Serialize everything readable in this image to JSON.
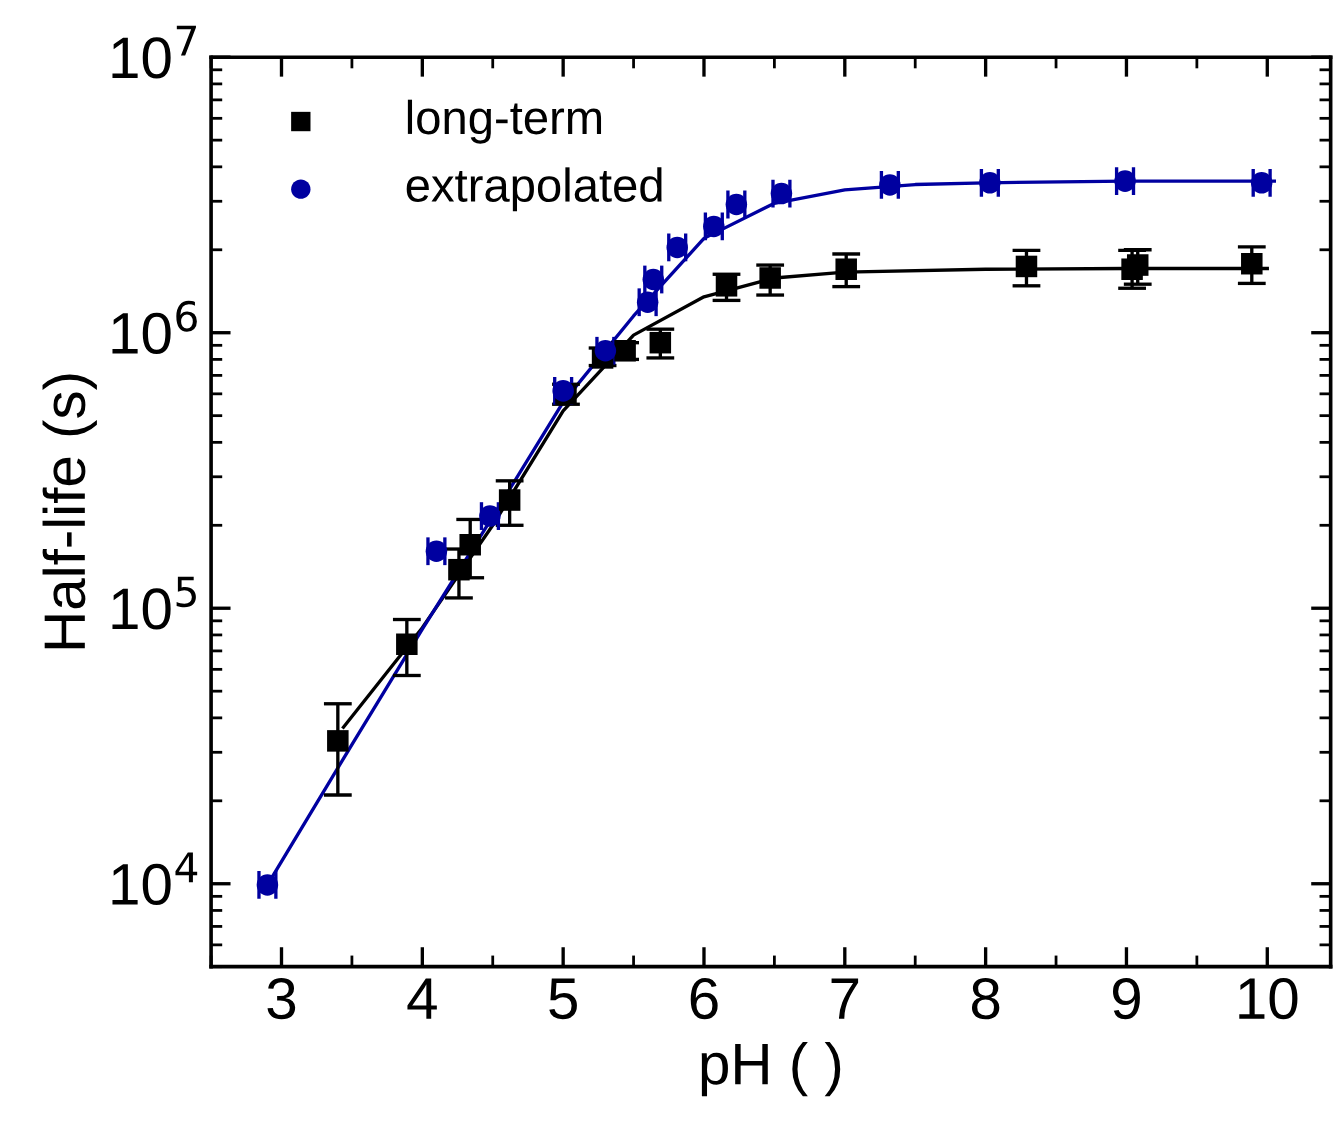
{
  "chart_data": {
    "type": "scatter",
    "xlabel": "pH ( )",
    "ylabel": "Half-life (s)",
    "log": "y",
    "xlim": [
      2.5,
      10.45
    ],
    "ylim": [
      5000,
      10000000
    ],
    "xticks": [
      3,
      4,
      5,
      6,
      7,
      8,
      9,
      10
    ],
    "yticks": [
      {
        "value": 10000,
        "label": "10$^{4}$"
      },
      {
        "value": 100000,
        "label": "10$^{5}$"
      },
      {
        "value": 1000000,
        "label": "10$^{6}$"
      },
      {
        "value": 10000000,
        "label": "10$^{7}$"
      }
    ],
    "grid": false,
    "legend": "top left",
    "series": [
      {
        "name": "long-term",
        "marker": "square",
        "color": "#000000",
        "x": [
          3.4,
          3.89,
          4.26,
          4.34,
          4.62,
          5.02,
          5.28,
          5.44,
          5.69,
          6.16,
          6.47,
          7.01,
          8.29,
          9.04,
          9.08,
          9.89
        ],
        "values": [
          33000,
          74000,
          138000,
          170000,
          247000,
          600000,
          810000,
          860000,
          920000,
          1480000,
          1580000,
          1700000,
          1740000,
          1700000,
          1760000,
          1780000
        ],
        "errors": [
          [
            21000,
            45000
          ],
          [
            57000,
            91000
          ],
          [
            109000,
            164000
          ],
          [
            129000,
            210000
          ],
          [
            200000,
            290000
          ],
          [
            550000,
            650000
          ],
          [
            760000,
            880000
          ],
          [
            800000,
            920000
          ],
          [
            810000,
            1030000
          ],
          [
            1310000,
            1630000
          ],
          [
            1370000,
            1760000
          ],
          [
            1470000,
            1930000
          ],
          [
            1480000,
            1990000
          ],
          [
            1450000,
            1990000
          ],
          [
            1500000,
            2000000
          ],
          [
            1510000,
            2050000
          ]
        ]
      },
      {
        "name": "extrapolated",
        "marker": "circle",
        "color": "#0000a0",
        "x": [
          2.9,
          4.1,
          4.48,
          5.0,
          5.3,
          5.6,
          5.64,
          5.81,
          6.07,
          6.23,
          6.55,
          7.32,
          8.03,
          8.99,
          9.96
        ],
        "values": [
          9900,
          161000,
          216000,
          615000,
          860000,
          1290000,
          1560000,
          2040000,
          2430000,
          2920000,
          3200000,
          3440000,
          3500000,
          3550000,
          3500000
        ],
        "xerrors": [
          0.06,
          0.06,
          0.06,
          0.06,
          0.06,
          0.06,
          0.06,
          0.06,
          0.06,
          0.06,
          0.06,
          0.06,
          0.06,
          0.06,
          0.06
        ]
      },
      {
        "type": "line",
        "line_style": "solid",
        "color": "#000000",
        "x": [
          3.44,
          4.0,
          4.5,
          5.0,
          5.5,
          6.0,
          6.5,
          7.0,
          8.0,
          9.0,
          10.0
        ],
        "values": [
          37000,
          85000,
          200000,
          520000,
          980000,
          1350000,
          1580000,
          1660000,
          1700000,
          1710000,
          1710000
        ]
      },
      {
        "type": "line",
        "line_style": "solid",
        "color": "#0000a0",
        "x": [
          2.9,
          3.5,
          4.0,
          4.5,
          5.0,
          5.5,
          6.0,
          6.5,
          7.0,
          7.5,
          8.0,
          9.0,
          10.05
        ],
        "values": [
          9900,
          32000,
          84000,
          215000,
          560000,
          1150000,
          2200000,
          2950000,
          3300000,
          3450000,
          3500000,
          3550000,
          3550000
        ]
      }
    ]
  }
}
